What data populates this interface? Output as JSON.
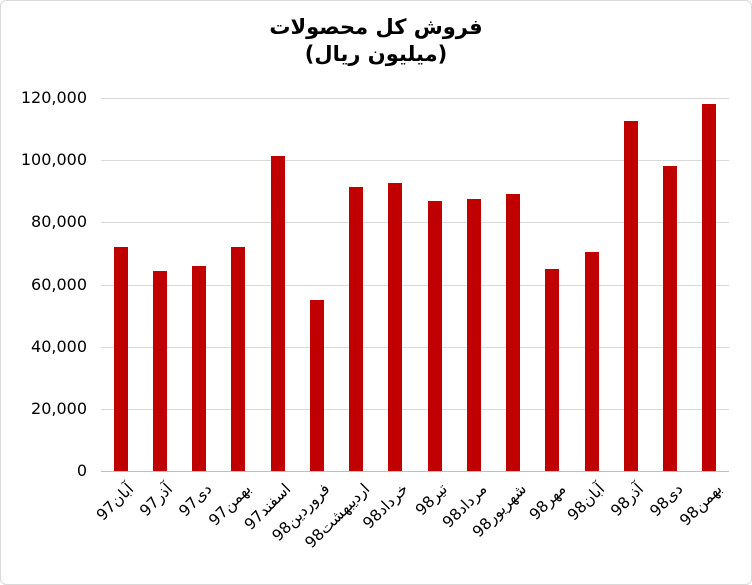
{
  "frame": {
    "background_color": "#FFFFFF",
    "border_color": "#D9D9D9"
  },
  "chart_data": {
    "type": "bar",
    "title_line1": "فروش کل محصولات",
    "title_line2": "(میلیون ریال)",
    "xlabel": "",
    "ylabel": "",
    "legend": "none",
    "grid": "horizontal",
    "categories": [
      "آبان97",
      "آذر97",
      "دی97",
      "بهمن97",
      "اسفند97",
      "فروردین98",
      "اردیبهشت98",
      "خرداد98",
      "تیر98",
      "مرداد98",
      "شهریور98",
      "مهر98",
      "آبان98",
      "آذر98",
      "دی98",
      "بهمن98"
    ],
    "values": [
      72000,
      64500,
      66000,
      72000,
      101500,
      55000,
      91500,
      92500,
      87000,
      87500,
      89000,
      65000,
      70500,
      112500,
      98000,
      118000
    ],
    "ylim": [
      0,
      120000
    ],
    "yticks": [
      {
        "value": 0,
        "label": "0"
      },
      {
        "value": 20000,
        "label": "20,000"
      },
      {
        "value": 40000,
        "label": "40,000"
      },
      {
        "value": 60000,
        "label": "60,000"
      },
      {
        "value": 80000,
        "label": "80,000"
      },
      {
        "value": 100000,
        "label": "100,000"
      },
      {
        "value": 120000,
        "label": "120,000"
      }
    ],
    "bar_color": "#C00000",
    "gridline_color": "#D9D9D9",
    "axis_color": "#BFBFBF",
    "text_color": "#000000"
  }
}
